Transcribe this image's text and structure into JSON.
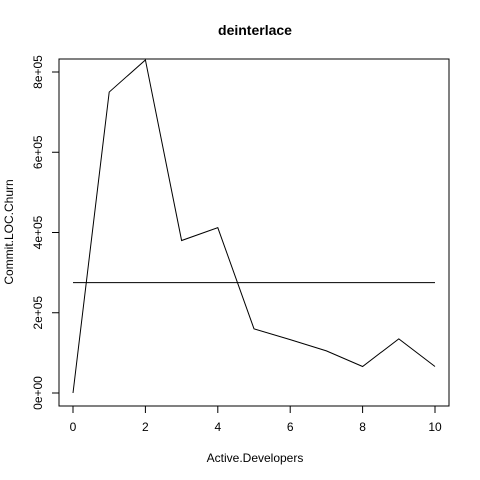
{
  "chart_data": {
    "type": "line",
    "title": "deinterlace",
    "xlabel": "Active.Developers",
    "ylabel": "Commit.LOC.Churn",
    "xlim": [
      0,
      10
    ],
    "ylim": [
      0,
      800000
    ],
    "x_ticks": [
      0,
      2,
      4,
      6,
      8,
      10
    ],
    "y_ticks": [
      0,
      200000,
      400000,
      600000,
      800000
    ],
    "x_tick_labels": [
      "0",
      "2",
      "4",
      "6",
      "8",
      "10"
    ],
    "y_tick_labels": [
      "0e+00",
      "2e+05",
      "4e+05",
      "6e+05",
      "8e+05"
    ],
    "grid": false,
    "series": [
      {
        "x": [
          0,
          1,
          2,
          3,
          4,
          5,
          6,
          7,
          8,
          9,
          10
        ],
        "values": [
          0,
          750000,
          830000,
          380000,
          412000,
          160000,
          133000,
          105000,
          66000,
          135000,
          66000
        ],
        "color": "#000000"
      }
    ],
    "reference_line": {
      "y": 275000,
      "x_range": [
        0,
        10
      ],
      "color": "#000000"
    }
  }
}
